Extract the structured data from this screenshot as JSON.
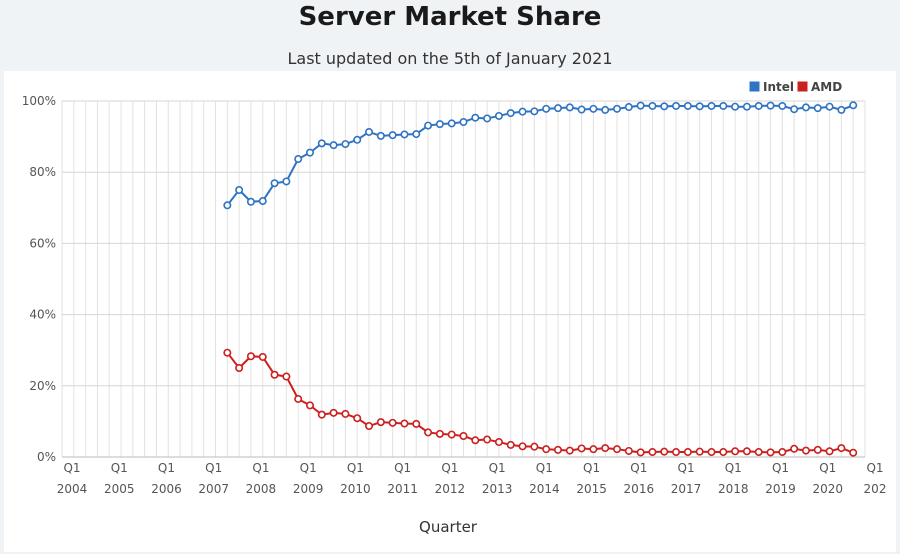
{
  "title": "Server Market Share",
  "subtitle": "Last updated on the 5th of January 2021",
  "chart_data": {
    "type": "line",
    "xlabel": "Quarter",
    "ylabel": "",
    "ylim": [
      0,
      100
    ],
    "yticks": [
      "0%",
      "20%",
      "40%",
      "60%",
      "80%",
      "100%"
    ],
    "legend_position": "top-right",
    "grid": true,
    "x_tick_labels": [
      {
        "q": "Q1",
        "year": "2004"
      },
      {
        "q": "Q1",
        "year": "2005"
      },
      {
        "q": "Q1",
        "year": "2006"
      },
      {
        "q": "Q1",
        "year": "2007"
      },
      {
        "q": "Q1",
        "year": "2008"
      },
      {
        "q": "Q1",
        "year": "2009"
      },
      {
        "q": "Q1",
        "year": "2010"
      },
      {
        "q": "Q1",
        "year": "2011"
      },
      {
        "q": "Q1",
        "year": "2012"
      },
      {
        "q": "Q1",
        "year": "2013"
      },
      {
        "q": "Q1",
        "year": "2014"
      },
      {
        "q": "Q1",
        "year": "2015"
      },
      {
        "q": "Q1",
        "year": "2016"
      },
      {
        "q": "Q1",
        "year": "2017"
      },
      {
        "q": "Q1",
        "year": "2018"
      },
      {
        "q": "Q1",
        "year": "2019"
      },
      {
        "q": "Q1",
        "year": "2020"
      },
      {
        "q": "Q1",
        "year": "202"
      }
    ],
    "x": [
      "2007 Q3",
      "2007 Q4",
      "2008 Q1",
      "2008 Q2",
      "2008 Q3",
      "2008 Q4",
      "2009 Q1",
      "2009 Q2",
      "2009 Q3",
      "2009 Q4",
      "2010 Q1",
      "2010 Q2",
      "2010 Q3",
      "2010 Q4",
      "2011 Q1",
      "2011 Q2",
      "2011 Q3",
      "2011 Q4",
      "2012 Q1",
      "2012 Q2",
      "2012 Q3",
      "2012 Q4",
      "2013 Q1",
      "2013 Q2",
      "2013 Q3",
      "2013 Q4",
      "2014 Q1",
      "2014 Q2",
      "2014 Q3",
      "2014 Q4",
      "2015 Q1",
      "2015 Q2",
      "2015 Q3",
      "2015 Q4",
      "2016 Q1",
      "2016 Q2",
      "2016 Q3",
      "2016 Q4",
      "2017 Q1",
      "2017 Q2",
      "2017 Q3",
      "2017 Q4",
      "2018 Q1",
      "2018 Q2",
      "2018 Q3",
      "2018 Q4",
      "2019 Q1",
      "2019 Q2",
      "2019 Q3",
      "2019 Q4",
      "2020 Q1",
      "2020 Q2",
      "2020 Q3",
      "2020 Q4"
    ],
    "series": [
      {
        "name": "Intel",
        "color": "#2f73c4",
        "values": [
          70.7,
          75.0,
          71.7,
          71.9,
          76.9,
          77.4,
          83.7,
          85.5,
          88.1,
          87.6,
          87.9,
          89.1,
          91.3,
          90.2,
          90.4,
          90.6,
          90.7,
          93.1,
          93.5,
          93.7,
          94.1,
          95.3,
          95.1,
          95.8,
          96.6,
          97.0,
          97.1,
          97.8,
          98.0,
          98.2,
          97.6,
          97.8,
          97.5,
          97.8,
          98.3,
          98.7,
          98.6,
          98.5,
          98.6,
          98.6,
          98.5,
          98.6,
          98.6,
          98.4,
          98.4,
          98.6,
          98.7,
          98.6,
          97.7,
          98.2,
          98.0,
          98.4,
          97.5,
          98.8
        ]
      },
      {
        "name": "AMD",
        "color": "#cc1f1f",
        "values": [
          29.3,
          25.0,
          28.3,
          28.1,
          23.1,
          22.6,
          16.3,
          14.5,
          11.9,
          12.4,
          12.1,
          10.9,
          8.7,
          9.8,
          9.6,
          9.4,
          9.3,
          6.9,
          6.5,
          6.3,
          5.9,
          4.7,
          4.9,
          4.2,
          3.4,
          3.0,
          2.9,
          2.2,
          2.0,
          1.8,
          2.4,
          2.2,
          2.5,
          2.2,
          1.7,
          1.3,
          1.4,
          1.5,
          1.4,
          1.4,
          1.5,
          1.4,
          1.4,
          1.6,
          1.6,
          1.4,
          1.3,
          1.4,
          2.3,
          1.8,
          2.0,
          1.6,
          2.5,
          1.2
        ]
      }
    ]
  }
}
